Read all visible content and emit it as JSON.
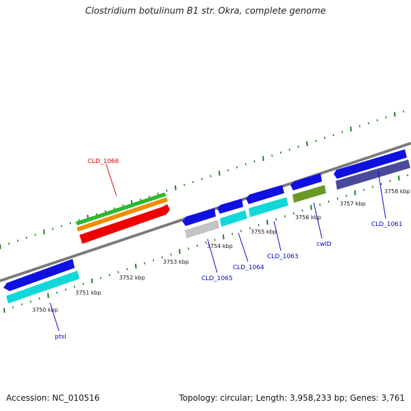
{
  "title": "Clostridium botulinum B1 str. Okra, complete genome",
  "footer": {
    "accession": "Accession: NC_010516",
    "summary": "Topology: circular; Length: 3,958,233 bp; Genes: 3,761"
  },
  "colors": {
    "backbone": "#7a7a7a",
    "tick": "#1e7a1e",
    "label_blue": "#0000c8",
    "label_red": "#d40000"
  },
  "kbp_labels": [
    "3750 kbp",
    "3751 kbp",
    "3752 kbp",
    "3753 kbp",
    "3754 kbp",
    "3755 kbp",
    "3756 kbp",
    "3757 kbp",
    "3758 kbp"
  ],
  "genes": [
    {
      "label": "ptsI",
      "color": "blue"
    },
    {
      "label": "CLD_1066",
      "color": "red"
    },
    {
      "label": "CLD_1065",
      "color": "blue"
    },
    {
      "label": "CLD_1064",
      "color": "blue"
    },
    {
      "label": "CLD_1063",
      "color": "blue"
    },
    {
      "label": "cwlD",
      "color": "blue"
    },
    {
      "label": "CLD_1061",
      "color": "blue"
    }
  ]
}
